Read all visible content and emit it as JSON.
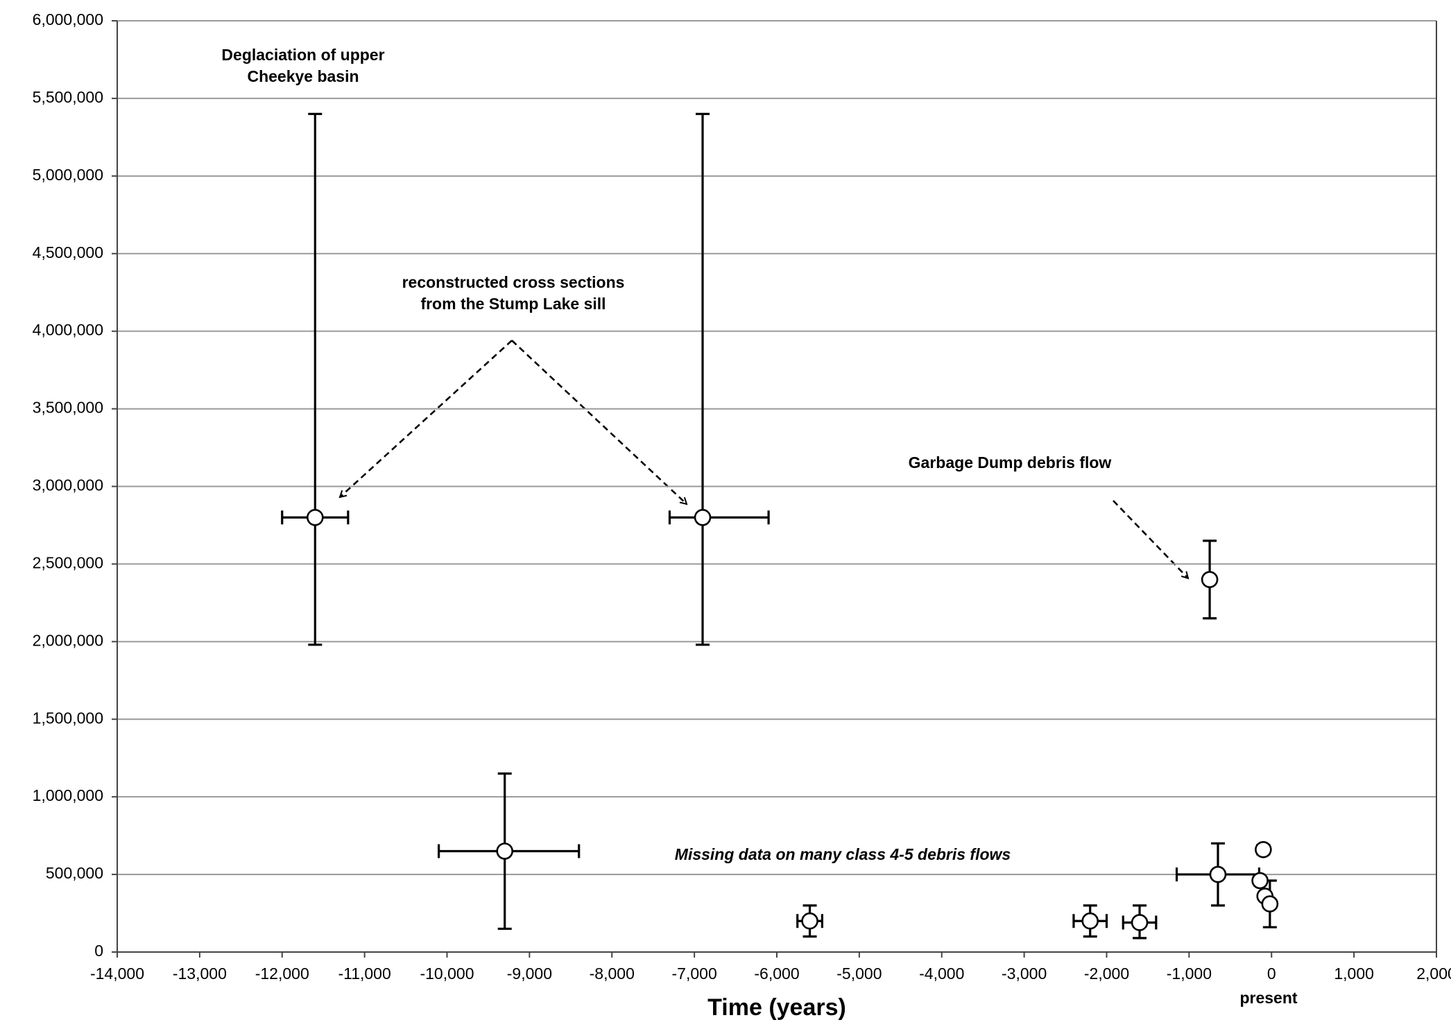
{
  "chart_data": {
    "type": "scatter",
    "xlabel": "Time (years)",
    "x": [
      -11600,
      -6900,
      -750,
      -9300,
      -5600,
      -2200,
      -1600,
      -650,
      -100,
      -140,
      -80,
      -20
    ],
    "values": [
      2800000,
      2800000,
      2400000,
      650000,
      200000,
      200000,
      190000,
      500000,
      660000,
      460000,
      360000,
      310000
    ],
    "y_low": [
      1980000,
      1980000,
      2150000,
      150000,
      100000,
      100000,
      90000,
      300000,
      630000,
      null,
      null,
      160000
    ],
    "y_high": [
      5400000,
      5400000,
      2650000,
      1150000,
      300000,
      300000,
      300000,
      700000,
      690000,
      null,
      null,
      460000
    ],
    "x_low": [
      -12000,
      -7300,
      null,
      -10100,
      -5750,
      -2400,
      -1800,
      -1150,
      null,
      null,
      null,
      null
    ],
    "x_high": [
      -11200,
      -6100,
      null,
      -8400,
      -5450,
      -2000,
      -1400,
      -150,
      null,
      null,
      null,
      null
    ],
    "color": "#ffffff",
    "edge_color": "#000000",
    "grid": true,
    "xlim": [
      -14000,
      2000
    ],
    "ylim": [
      0,
      6000000
    ],
    "xticks": [
      {
        "value": -14000,
        "label": "-14,000"
      },
      {
        "value": -13000,
        "label": "-13,000"
      },
      {
        "value": -12000,
        "label": "-12,000"
      },
      {
        "value": -11000,
        "label": "-11,000"
      },
      {
        "value": -10000,
        "label": "-10,000"
      },
      {
        "value": -9000,
        "label": "-9,000"
      },
      {
        "value": -8000,
        "label": "-8,000"
      },
      {
        "value": -7000,
        "label": "-7,000"
      },
      {
        "value": -6000,
        "label": "-6,000"
      },
      {
        "value": -5000,
        "label": "-5,000"
      },
      {
        "value": -4000,
        "label": "-4,000"
      },
      {
        "value": -3000,
        "label": "-3,000"
      },
      {
        "value": -2000,
        "label": "-2,000"
      },
      {
        "value": -1000,
        "label": "-1,000"
      },
      0,
      {
        "value": 1000,
        "label": "1,000"
      },
      {
        "value": 2000,
        "label": "2,000"
      }
    ],
    "yticks": [
      0,
      {
        "value": 500000,
        "label": "500,000"
      },
      {
        "value": 1000000,
        "label": "1,000,000"
      },
      {
        "value": 1500000,
        "label": "1,500,000"
      },
      {
        "value": 2000000,
        "label": "2,000,000"
      },
      {
        "value": 2500000,
        "label": "2,500,000"
      },
      {
        "value": 3000000,
        "label": "3,000,000"
      },
      {
        "value": 3500000,
        "label": "3,500,000"
      },
      {
        "value": 4000000,
        "label": "4,000,000"
      },
      {
        "value": 4500000,
        "label": "4,500,000"
      },
      {
        "value": 5000000,
        "label": "5,000,000"
      },
      {
        "value": 5500000,
        "label": "5,500,000"
      },
      {
        "value": 6000000,
        "label": "6,000,000"
      }
    ],
    "annotations": [
      {
        "lines": [
          "Deglaciation of upper",
          "Cheekye basin"
        ]
      },
      {
        "lines": [
          "reconstructed cross sections",
          "from the Stump Lake sill"
        ]
      },
      {
        "lines": [
          "Garbage Dump debris flow"
        ]
      },
      {
        "lines": [
          "Missing data on many class 4-5 debris flows"
        ]
      },
      {
        "lines": [
          "present"
        ]
      }
    ]
  }
}
